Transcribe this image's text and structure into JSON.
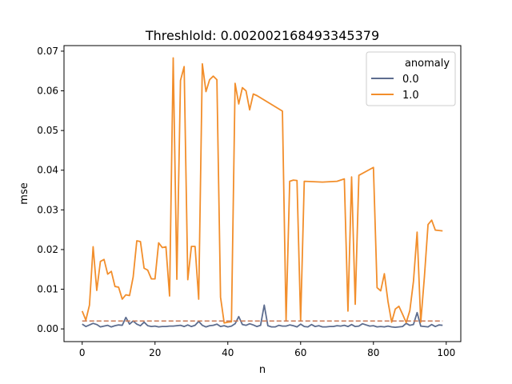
{
  "chart_data": {
    "type": "line",
    "title": "Threshlold: 0.002002168493345379",
    "xlabel": "n",
    "ylabel": "mse",
    "xlim": [
      -5,
      104
    ],
    "ylim": [
      -0.0032,
      0.0714
    ],
    "xticks": [
      0,
      20,
      40,
      60,
      80,
      100
    ],
    "yticks": [
      0.0,
      0.01,
      0.02,
      0.03,
      0.04,
      0.05,
      0.06,
      0.07
    ],
    "xtick_labels": [
      "0",
      "20",
      "40",
      "60",
      "80",
      "100"
    ],
    "ytick_labels": [
      "0.00",
      "0.01",
      "0.02",
      "0.03",
      "0.04",
      "0.05",
      "0.06",
      "0.07"
    ],
    "grid": false,
    "legend_position": "upper-right",
    "legend_title": "anomaly",
    "threshold": {
      "value": 0.002002168493345379,
      "x_range": [
        0,
        99
      ],
      "style": "dashed",
      "color": "#c97a55"
    },
    "series": [
      {
        "name": "0.0",
        "color": "#5d6d8f",
        "points": [
          [
            0,
            0.0012
          ],
          [
            1,
            0.0006
          ],
          [
            2,
            0.001
          ],
          [
            3,
            0.0014
          ],
          [
            4,
            0.0011
          ],
          [
            5,
            0.0005
          ],
          [
            6,
            0.0007
          ],
          [
            7,
            0.0009
          ],
          [
            8,
            0.0005
          ],
          [
            9,
            0.0008
          ],
          [
            10,
            0.001
          ],
          [
            11,
            0.0009
          ],
          [
            12,
            0.0029
          ],
          [
            13,
            0.0012
          ],
          [
            14,
            0.002
          ],
          [
            15,
            0.0012
          ],
          [
            16,
            0.0008
          ],
          [
            17,
            0.0017
          ],
          [
            18,
            0.0008
          ],
          [
            19,
            0.0006
          ],
          [
            20,
            0.0007
          ],
          [
            21,
            0.0005
          ],
          [
            22,
            0.0006
          ],
          [
            23,
            0.0006
          ],
          [
            24,
            0.0007
          ],
          [
            25,
            0.0007
          ],
          [
            26,
            0.0008
          ],
          [
            27,
            0.0009
          ],
          [
            28,
            0.0006
          ],
          [
            29,
            0.001
          ],
          [
            30,
            0.0006
          ],
          [
            31,
            0.0009
          ],
          [
            32,
            0.0019
          ],
          [
            33,
            0.0009
          ],
          [
            34,
            0.0005
          ],
          [
            35,
            0.0008
          ],
          [
            36,
            0.0009
          ],
          [
            37,
            0.0012
          ],
          [
            38,
            0.0006
          ],
          [
            39,
            0.0008
          ],
          [
            40,
            0.0005
          ],
          [
            41,
            0.0007
          ],
          [
            42,
            0.0013
          ],
          [
            43,
            0.0031
          ],
          [
            44,
            0.0011
          ],
          [
            45,
            0.0009
          ],
          [
            46,
            0.0013
          ],
          [
            47,
            0.001
          ],
          [
            48,
            0.0006
          ],
          [
            49,
            0.0009
          ],
          [
            50,
            0.006
          ],
          [
            51,
            0.0008
          ],
          [
            52,
            0.0005
          ],
          [
            53,
            0.0005
          ],
          [
            54,
            0.0009
          ],
          [
            55,
            0.0007
          ],
          [
            56,
            0.0007
          ],
          [
            57,
            0.001
          ],
          [
            58,
            0.0008
          ],
          [
            59,
            0.0005
          ],
          [
            60,
            0.0012
          ],
          [
            61,
            0.0006
          ],
          [
            62,
            0.0005
          ],
          [
            63,
            0.0011
          ],
          [
            64,
            0.0006
          ],
          [
            65,
            0.0008
          ],
          [
            66,
            0.0005
          ],
          [
            67,
            0.0005
          ],
          [
            68,
            0.0006
          ],
          [
            69,
            0.0006
          ],
          [
            70,
            0.0008
          ],
          [
            71,
            0.0007
          ],
          [
            72,
            0.0009
          ],
          [
            73,
            0.0006
          ],
          [
            74,
            0.0011
          ],
          [
            75,
            0.0006
          ],
          [
            76,
            0.0007
          ],
          [
            77,
            0.0013
          ],
          [
            78,
            0.001
          ],
          [
            79,
            0.0007
          ],
          [
            80,
            0.0008
          ],
          [
            81,
            0.0005
          ],
          [
            82,
            0.0006
          ],
          [
            83,
            0.0005
          ],
          [
            84,
            0.0007
          ],
          [
            85,
            0.0005
          ],
          [
            86,
            0.0004
          ],
          [
            87,
            0.0005
          ],
          [
            88,
            0.0006
          ],
          [
            89,
            0.0014
          ],
          [
            90,
            0.0009
          ],
          [
            91,
            0.0011
          ],
          [
            92,
            0.0041
          ],
          [
            93,
            0.0007
          ],
          [
            94,
            0.0006
          ],
          [
            95,
            0.0005
          ],
          [
            96,
            0.0011
          ],
          [
            97,
            0.0006
          ],
          [
            98,
            0.001
          ],
          [
            99,
            0.0009
          ]
        ]
      },
      {
        "name": "1.0",
        "color": "#f28e2b",
        "points": [
          [
            0,
            0.0045
          ],
          [
            1,
            0.0022
          ],
          [
            2,
            0.006
          ],
          [
            3,
            0.0207
          ],
          [
            4,
            0.0097
          ],
          [
            5,
            0.017
          ],
          [
            6,
            0.0175
          ],
          [
            7,
            0.0138
          ],
          [
            8,
            0.0145
          ],
          [
            9,
            0.0107
          ],
          [
            10,
            0.0105
          ],
          [
            11,
            0.0075
          ],
          [
            12,
            0.0086
          ],
          [
            13,
            0.0084
          ],
          [
            14,
            0.0131
          ],
          [
            15,
            0.0222
          ],
          [
            16,
            0.022
          ],
          [
            17,
            0.0153
          ],
          [
            18,
            0.0148
          ],
          [
            19,
            0.0126
          ],
          [
            20,
            0.0126
          ],
          [
            21,
            0.0217
          ],
          [
            22,
            0.0205
          ],
          [
            23,
            0.0207
          ],
          [
            24,
            0.0083
          ],
          [
            25,
            0.0683
          ],
          [
            26,
            0.0125
          ],
          [
            27,
            0.0626
          ],
          [
            28,
            0.0661
          ],
          [
            29,
            0.0124
          ],
          [
            30,
            0.0208
          ],
          [
            31,
            0.0208
          ],
          [
            32,
            0.0075
          ],
          [
            33,
            0.0668
          ],
          [
            34,
            0.0598
          ],
          [
            35,
            0.0628
          ],
          [
            36,
            0.0637
          ],
          [
            37,
            0.0628
          ],
          [
            38,
            0.008
          ],
          [
            39,
            0.0015
          ],
          [
            40,
            0.0017
          ],
          [
            41,
            0.0018
          ],
          [
            42,
            0.0619
          ],
          [
            43,
            0.0567
          ],
          [
            44,
            0.0608
          ],
          [
            45,
            0.06
          ],
          [
            46,
            0.0552
          ],
          [
            47,
            0.0592
          ],
          [
            48,
            0.0588
          ],
          [
            55,
            0.0549
          ],
          [
            56,
            0.002
          ],
          [
            57,
            0.0372
          ],
          [
            58,
            0.0375
          ],
          [
            59,
            0.0374
          ],
          [
            60,
            0.002
          ],
          [
            61,
            0.0372
          ],
          [
            66,
            0.037
          ],
          [
            70,
            0.0372
          ],
          [
            72,
            0.0378
          ],
          [
            73,
            0.0045
          ],
          [
            74,
            0.0383
          ],
          [
            75,
            0.0062
          ],
          [
            76,
            0.0387
          ],
          [
            80,
            0.0407
          ],
          [
            81,
            0.0104
          ],
          [
            82,
            0.0096
          ],
          [
            83,
            0.0139
          ],
          [
            84,
            0.0069
          ],
          [
            85,
            0.0017
          ],
          [
            86,
            0.005
          ],
          [
            87,
            0.0057
          ],
          [
            88,
            0.0037
          ],
          [
            89,
            0.0016
          ],
          [
            90,
            0.0046
          ],
          [
            91,
            0.012
          ],
          [
            92,
            0.0244
          ],
          [
            93,
            0.0017
          ],
          [
            94,
            0.0131
          ],
          [
            95,
            0.0263
          ],
          [
            96,
            0.0274
          ],
          [
            97,
            0.0249
          ],
          [
            98,
            0.0248
          ],
          [
            99,
            0.0247
          ]
        ]
      }
    ]
  }
}
